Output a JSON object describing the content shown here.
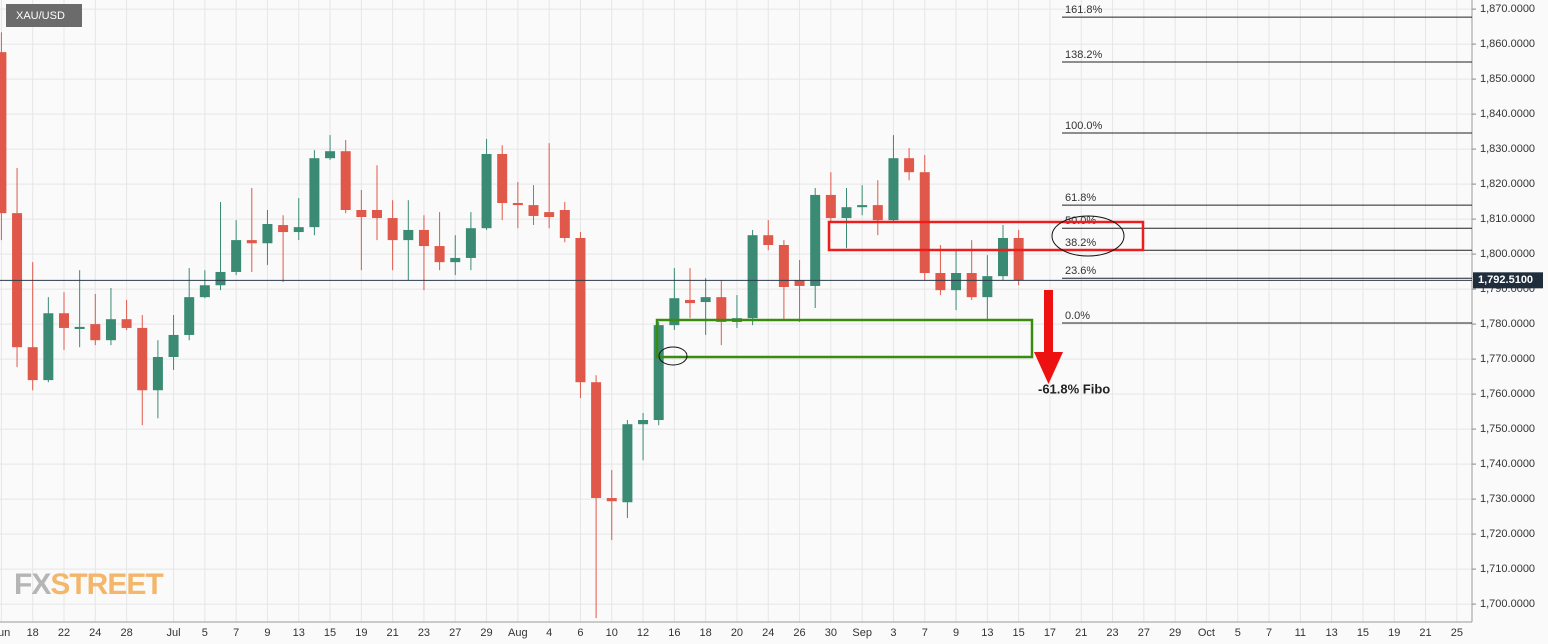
{
  "chart_data": {
    "type": "candlestick",
    "symbol": "XAU/USD",
    "categories": [
      "Jun",
      null,
      "18",
      null,
      "22",
      null,
      "24",
      null,
      "28",
      null,
      null,
      "Jul",
      null,
      "5",
      null,
      "7",
      null,
      "9",
      null,
      "13",
      null,
      "15",
      null,
      "19",
      null,
      "21",
      null,
      "23",
      null,
      "27",
      null,
      "29",
      null,
      "Aug",
      null,
      "4",
      null,
      "6",
      null,
      "10",
      null,
      "12",
      null,
      "16",
      null,
      "18",
      null,
      "20",
      null,
      "24",
      null,
      "26",
      null,
      "30",
      null,
      "Sep",
      null,
      "3",
      null,
      "7",
      null,
      "9",
      null,
      "13",
      null,
      "15",
      null,
      "17",
      null,
      "21",
      null,
      "23",
      null,
      "27",
      null,
      "29",
      null,
      "Oct",
      null,
      "5",
      null,
      "7",
      null,
      "11",
      null,
      "13",
      null,
      "15",
      null,
      "19",
      null,
      "21",
      null,
      "25"
    ],
    "open": [
      1857.7,
      1811.7,
      1773.4,
      1764,
      1783.1,
      1778.6,
      1780,
      1775.4,
      1781.4,
      1778.9,
      1761.1,
      1770.6,
      1776.9,
      1787.7,
      1791.1,
      1794.9,
      1804,
      1803.1,
      1808.3,
      1806.3,
      1807.7,
      1827.4,
      1829.4,
      1812.6,
      1812.6,
      1810.3,
      1804,
      1806.9,
      1802.3,
      1797.7,
      1798.9,
      1807.4,
      1828.6,
      1814.6,
      1814,
      1812,
      1812.6,
      1804.6,
      1763.4,
      1730.3,
      1729.1,
      1751.4,
      1752.6,
      1779.7,
      1786.9,
      1786.3,
      1787.7,
      1780.6,
      1781.7,
      1805.4,
      1802.6,
      1792.6,
      1790.9,
      1816.9,
      1810.3,
      1813.4,
      1814,
      1809.7,
      1827.4,
      1823.4,
      1794.6,
      1789.7,
      1794.6,
      1787.7,
      1793.7,
      1804.6,
      null,
      null,
      null,
      null,
      null,
      null,
      null,
      null,
      null,
      null,
      null,
      null,
      null,
      null,
      null,
      null,
      null,
      null,
      null,
      null,
      null,
      null,
      null,
      null,
      null,
      null,
      null,
      null
    ],
    "high": [
      1863.4,
      1824.6,
      1797.7,
      1787.7,
      1789.1,
      1795.4,
      1788.6,
      1790.3,
      1786.9,
      1782.6,
      1775.4,
      1782.6,
      1796,
      1795.4,
      1814.9,
      1809.7,
      1818.9,
      1812.6,
      1811.1,
      1816,
      1829.7,
      1834,
      1832.6,
      1818.3,
      1825.4,
      1815.4,
      1815.4,
      1811.1,
      1812,
      1805.4,
      1812,
      1832.9,
      1831.1,
      1820.6,
      1819.7,
      1831.7,
      1814.9,
      1806.3,
      1765.4,
      1738.3,
      1752.6,
      1754.6,
      1780.6,
      1796,
      1796,
      1793.1,
      1792.6,
      1788.3,
      1806.9,
      1809.7,
      1804,
      1798.3,
      1818.9,
      1823.4,
      1818.9,
      1819.7,
      1821.1,
      1834,
      1830.3,
      1828.3,
      1802.6,
      1801.1,
      1804,
      1799.7,
      1808.3,
      1806.9,
      null,
      null,
      null,
      null,
      null,
      null,
      null,
      null,
      null,
      null,
      null,
      null,
      null,
      null,
      null,
      null,
      null,
      null,
      null,
      null,
      null,
      null,
      null,
      null,
      null,
      null,
      null,
      null
    ],
    "low": [
      1804,
      1767.7,
      1761.1,
      1763.4,
      1772.6,
      1773.4,
      1774,
      1774,
      1778.3,
      1751.1,
      1753.1,
      1766.9,
      1775.4,
      1787.4,
      1789.7,
      1794,
      1794.9,
      1796.9,
      1792,
      1804,
      1805.4,
      1826.9,
      1811.7,
      1795.4,
      1804,
      1795.4,
      1792.6,
      1789.7,
      1795.4,
      1794,
      1795.4,
      1806.9,
      1809.7,
      1807.4,
      1808.3,
      1807.4,
      1803.4,
      1758.9,
      1696,
      1718.3,
      1724.6,
      1741.1,
      1751.1,
      1778.3,
      1781.7,
      1776.9,
      1774,
      1778.9,
      1779.7,
      1801.1,
      1781.1,
      1780.6,
      1784.6,
      1809.1,
      1801.7,
      1811.1,
      1805.4,
      1809.1,
      1821.1,
      1792.6,
      1788.3,
      1784,
      1786.9,
      1781.1,
      1792.6,
      1791.1,
      null,
      null,
      null,
      null,
      null,
      null,
      null,
      null,
      null,
      null,
      null,
      null,
      null,
      null,
      null,
      null,
      null,
      null,
      null,
      null,
      null,
      null,
      null,
      null,
      null,
      null,
      null,
      null
    ],
    "close": [
      1811.7,
      1773.4,
      1764,
      1783.1,
      1778.9,
      1779.2,
      1775.4,
      1781.4,
      1778.9,
      1761.1,
      1770.6,
      1776.9,
      1787.7,
      1791.1,
      1794.9,
      1804,
      1803.1,
      1808.6,
      1806.3,
      1807.7,
      1827.4,
      1829.4,
      1812.6,
      1810.6,
      1810.3,
      1804,
      1806.9,
      1802.3,
      1797.7,
      1798.9,
      1807.4,
      1828.6,
      1814.6,
      1814,
      1810.9,
      1810.6,
      1804.6,
      1763.4,
      1730.3,
      1729.4,
      1751.4,
      1752.6,
      1779.7,
      1787.4,
      1786,
      1787.7,
      1780.6,
      1781.7,
      1805.4,
      1802.6,
      1790.6,
      1790.9,
      1816.9,
      1810.3,
      1813.4,
      1814,
      1809.7,
      1827.4,
      1823.4,
      1794.6,
      1789.7,
      1794.6,
      1787.7,
      1793.7,
      1804.6,
      1792.6,
      null,
      null,
      null,
      null,
      null,
      null,
      null,
      null,
      null,
      null,
      null,
      null,
      null,
      null,
      null,
      null,
      null,
      null,
      null,
      null,
      null,
      null,
      null,
      null,
      null,
      null,
      null,
      null
    ],
    "up_color": "#3a8a74",
    "down_color": "#e0584a",
    "ylim": [
      1695.4,
      1872.6
    ],
    "yticks": [
      {
        "value": 1700,
        "label": "1,700.0000"
      },
      {
        "value": 1710,
        "label": "1,710.0000"
      },
      {
        "value": 1720,
        "label": "1,720.0000"
      },
      {
        "value": 1730,
        "label": "1,730.0000"
      },
      {
        "value": 1740,
        "label": "1,740.0000"
      },
      {
        "value": 1750,
        "label": "1,750.0000"
      },
      {
        "value": 1760,
        "label": "1,760.0000"
      },
      {
        "value": 1770,
        "label": "1,770.0000"
      },
      {
        "value": 1780,
        "label": "1,780.0000"
      },
      {
        "value": 1790,
        "label": "1,790.0000"
      },
      {
        "value": 1800,
        "label": "1,800.0000"
      },
      {
        "value": 1810,
        "label": "1,810.0000"
      },
      {
        "value": 1820,
        "label": "1,820.0000"
      },
      {
        "value": 1830,
        "label": "1,830.0000"
      },
      {
        "value": 1840,
        "label": "1,840.0000"
      },
      {
        "value": 1850,
        "label": "1,850.0000"
      },
      {
        "value": 1860,
        "label": "1,860.0000"
      },
      {
        "value": 1870,
        "label": "1,870.0000"
      }
    ],
    "grid": true,
    "last_price": {
      "value": 1792.51,
      "label": "1,792.5100"
    },
    "fibonacci": [
      {
        "label": "161.8%",
        "value": 1867.7
      },
      {
        "label": "138.2%",
        "value": 1854.9
      },
      {
        "label": "100.0%",
        "value": 1834.6
      },
      {
        "label": "61.8%",
        "value": 1814
      },
      {
        "label": "50.0%",
        "value": 1807.4
      },
      {
        "label": "38.2%",
        "value": 1801.1
      },
      {
        "label": "23.6%",
        "value": 1793.1
      },
      {
        "label": "0.0%",
        "value": 1780.3
      }
    ],
    "annotation": "-61.8% Fibo",
    "watermark": {
      "fx": "FX",
      "street": "STREET"
    }
  }
}
